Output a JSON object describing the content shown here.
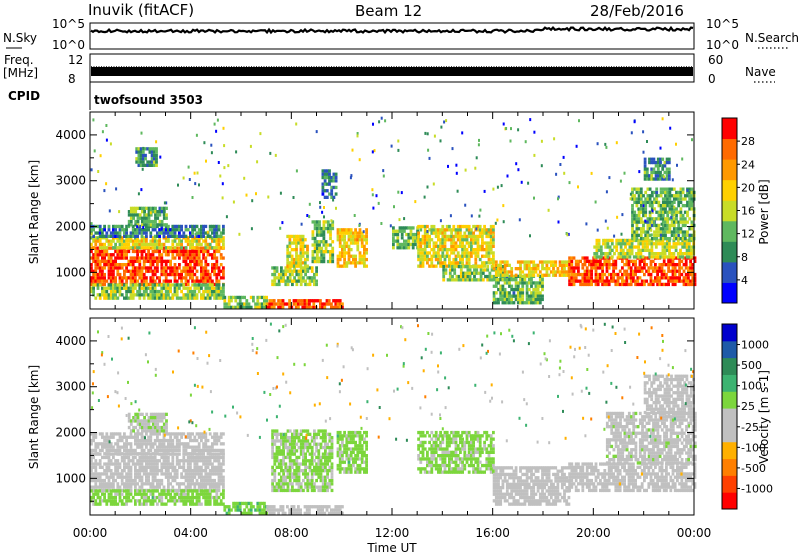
{
  "header": {
    "station": "Inuvik (fitACF)",
    "beam": "Beam 12",
    "date": "28/Feb/2016"
  },
  "strips": {
    "nsky_label": "N.Sky",
    "nsearch_label": "N.Search",
    "nsky_ticks": [
      "10^5",
      "10^0"
    ],
    "nsearch_ticks": [
      "10^5",
      "10^0"
    ],
    "freq_label_1": "Freq.",
    "freq_label_2": "[MHz]",
    "freq_ticks": [
      "12",
      "8"
    ],
    "nave_label": "Nave",
    "nave_ticks": [
      "60",
      "0"
    ],
    "cpid_label": "CPID",
    "cpid_value": "twofsound 3503"
  },
  "colors": {
    "power_scale": [
      "#0000ff",
      "#2a52be",
      "#2e8b57",
      "#5fb85f",
      "#c8dc28",
      "#ffd000",
      "#ff9900",
      "#ff6a00",
      "#ff0000"
    ],
    "velocity_scale": [
      "#ff0000",
      "#ff4000",
      "#ff7f00",
      "#ffb000",
      "#c0c0c0",
      "#c0c0c0",
      "#7cd63c",
      "#3cb371",
      "#2e8b57",
      "#1e5aa8",
      "#0000cd"
    ]
  },
  "chart_data": [
    {
      "type": "heatmap",
      "panel": "power",
      "ylabel": "Slant Range [km]",
      "ylim": [
        200,
        4500
      ],
      "yticks": [
        1000,
        2000,
        3000,
        4000
      ],
      "xlim": [
        0,
        24
      ],
      "colorbar_label": "Power [dB]",
      "colorbar_ticks": [
        "28",
        "24",
        "20",
        "16",
        "12",
        "8",
        "4"
      ],
      "colorbar_range": [
        0,
        32
      ],
      "regions": [
        {
          "t0": 0.0,
          "t1": 5.3,
          "r0": 700,
          "r1": 1500,
          "v": 28
        },
        {
          "t0": 0.0,
          "t1": 5.3,
          "r0": 1500,
          "r1": 1750,
          "v": 18
        },
        {
          "t0": 0.0,
          "t1": 5.3,
          "r0": 1750,
          "r1": 2000,
          "v": 8
        },
        {
          "t0": 0.0,
          "t1": 5.3,
          "r0": 400,
          "r1": 700,
          "v": 14
        },
        {
          "t0": 1.5,
          "t1": 3.0,
          "r0": 2000,
          "r1": 2400,
          "v": 12
        },
        {
          "t0": 1.8,
          "t1": 2.6,
          "r0": 3300,
          "r1": 3700,
          "v": 10
        },
        {
          "t0": 5.3,
          "t1": 7.0,
          "r0": 200,
          "r1": 450,
          "v": 14
        },
        {
          "t0": 7.0,
          "t1": 10.0,
          "r0": 200,
          "r1": 400,
          "v": 28
        },
        {
          "t0": 7.2,
          "t1": 9.0,
          "r0": 700,
          "r1": 1100,
          "v": 14
        },
        {
          "t0": 7.8,
          "t1": 8.6,
          "r0": 1100,
          "r1": 1800,
          "v": 18
        },
        {
          "t0": 8.8,
          "t1": 9.6,
          "r0": 1200,
          "r1": 2100,
          "v": 14
        },
        {
          "t0": 9.8,
          "t1": 11.0,
          "r0": 1100,
          "r1": 1900,
          "v": 20
        },
        {
          "t0": 9.2,
          "t1": 9.8,
          "r0": 2600,
          "r1": 3200,
          "v": 8
        },
        {
          "t0": 12.0,
          "t1": 13.0,
          "r0": 1500,
          "r1": 2000,
          "v": 12
        },
        {
          "t0": 13.0,
          "t1": 16.0,
          "r0": 1100,
          "r1": 2000,
          "v": 18
        },
        {
          "t0": 14.0,
          "t1": 16.5,
          "r0": 800,
          "r1": 1100,
          "v": 14
        },
        {
          "t0": 16.0,
          "t1": 18.0,
          "r0": 300,
          "r1": 900,
          "v": 12
        },
        {
          "t0": 16.0,
          "t1": 19.0,
          "r0": 900,
          "r1": 1200,
          "v": 20
        },
        {
          "t0": 19.0,
          "t1": 24.0,
          "r0": 700,
          "r1": 1300,
          "v": 28
        },
        {
          "t0": 20.0,
          "t1": 24.0,
          "r0": 1300,
          "r1": 1700,
          "v": 16
        },
        {
          "t0": 21.5,
          "t1": 24.0,
          "r0": 1700,
          "r1": 2800,
          "v": 12
        },
        {
          "t0": 22.0,
          "t1": 23.0,
          "r0": 3000,
          "r1": 3500,
          "v": 10
        }
      ]
    },
    {
      "type": "heatmap",
      "panel": "velocity",
      "ylabel": "Slant Range [km]",
      "ylim": [
        200,
        4500
      ],
      "yticks": [
        1000,
        2000,
        3000,
        4000
      ],
      "xlim": [
        0,
        24
      ],
      "xticks": [
        "00:00",
        "04:00",
        "08:00",
        "12:00",
        "16:00",
        "20:00",
        "00:00"
      ],
      "xlabel": "Time UT",
      "colorbar_label": "Velocity [m s-1]",
      "colorbar_ticks": [
        "1000",
        "500",
        "100",
        "25",
        "-25",
        "-100",
        "-500",
        "-1000"
      ],
      "colorbar_range": [
        -1200,
        1200
      ],
      "regions": [
        {
          "t0": 0.0,
          "t1": 5.3,
          "r0": 700,
          "r1": 1500,
          "v": -150
        },
        {
          "t0": 0.0,
          "t1": 5.3,
          "r0": 1500,
          "r1": 2000,
          "v": -80
        },
        {
          "t0": 0.0,
          "t1": 5.3,
          "r0": 400,
          "r1": 700,
          "v": 200
        },
        {
          "t0": 1.5,
          "t1": 3.0,
          "r0": 2000,
          "r1": 2400,
          "v": 60
        },
        {
          "t0": 5.3,
          "t1": 7.0,
          "r0": 200,
          "r1": 450,
          "v": 250
        },
        {
          "t0": 7.0,
          "t1": 10.0,
          "r0": 200,
          "r1": 400,
          "v": -150
        },
        {
          "t0": 7.2,
          "t1": 9.6,
          "r0": 700,
          "r1": 2000,
          "v": 150
        },
        {
          "t0": 9.8,
          "t1": 11.0,
          "r0": 1100,
          "r1": 2000,
          "v": 200
        },
        {
          "t0": 13.0,
          "t1": 16.0,
          "r0": 1100,
          "r1": 2000,
          "v": 180
        },
        {
          "t0": 16.0,
          "t1": 19.0,
          "r0": 400,
          "r1": 1200,
          "v": -150
        },
        {
          "t0": 19.0,
          "t1": 24.0,
          "r0": 700,
          "r1": 1300,
          "v": -200
        },
        {
          "t0": 20.5,
          "t1": 24.0,
          "r0": 1300,
          "r1": 2400,
          "v": 0
        },
        {
          "t0": 22.0,
          "t1": 24.0,
          "r0": 2400,
          "r1": 3200,
          "v": -60
        }
      ]
    }
  ]
}
